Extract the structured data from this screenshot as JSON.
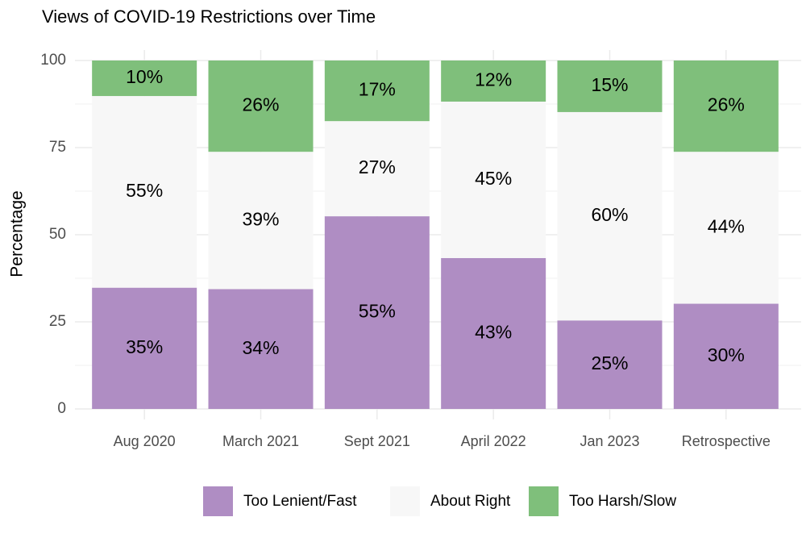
{
  "chart_data": {
    "type": "stacked_bar",
    "title": "Views of COVID-19 Restrictions over Time",
    "y_label": "Percentage",
    "categories": [
      "Aug 2020",
      "March 2021",
      "Sept 2021",
      "April 2022",
      "Jan 2023",
      "Retrospective"
    ],
    "series": [
      {
        "name": "Too Lenient/Fast",
        "color": "#af8dc3",
        "values": [
          34.8,
          34.4,
          55.3,
          43.3,
          25.4,
          30.2
        ],
        "value_labels": [
          "35%",
          "34%",
          "55%",
          "43%",
          "25%",
          "30%"
        ]
      },
      {
        "name": "About Right",
        "color": "#f7f7f7",
        "values": [
          55.0,
          39.4,
          27.3,
          44.9,
          59.8,
          43.6
        ],
        "value_labels": [
          "55%",
          "39%",
          "27%",
          "45%",
          "60%",
          "44%"
        ]
      },
      {
        "name": "Too Harsh/Slow",
        "color": "#7fbf7b",
        "values": [
          10.2,
          26.2,
          17.4,
          11.8,
          14.8,
          26.2
        ],
        "value_labels": [
          "10%",
          "26%",
          "17%",
          "12%",
          "15%",
          "26%"
        ]
      }
    ],
    "ylim": [
      0,
      100
    ],
    "yticks": [
      0,
      25,
      50,
      75,
      100
    ],
    "grid": true,
    "legend": "bottom"
  }
}
